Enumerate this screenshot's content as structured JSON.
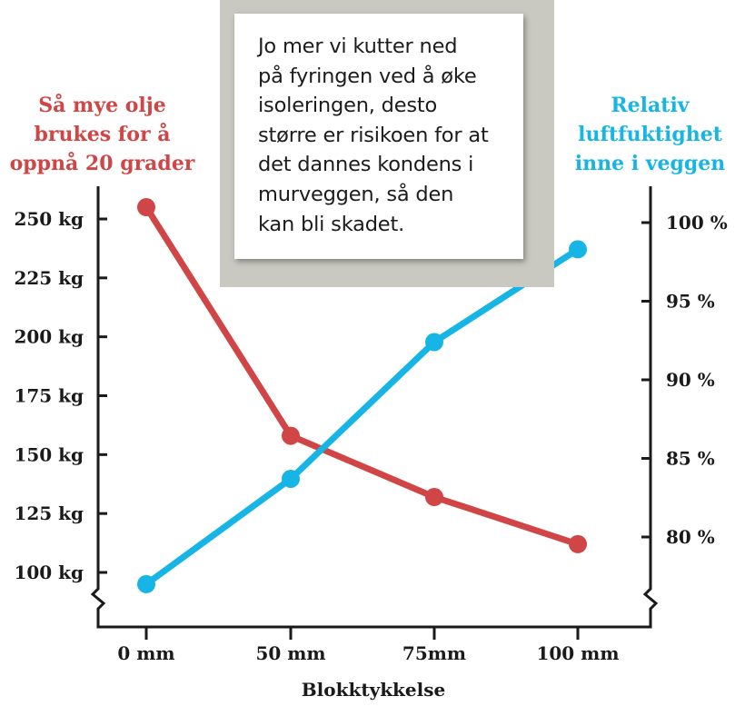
{
  "note": {
    "lines": [
      "Jo mer vi kutter ned",
      "på fyringen ved å øke",
      "isoleringen, desto",
      "større er risikoen for at",
      "det dannes kondens i",
      "murveggen, så den",
      "kan bli skadet."
    ]
  },
  "chart_data": {
    "type": "line",
    "categories": [
      "0 mm",
      "50 mm",
      "75mm",
      "100 mm"
    ],
    "xlabel": "Blokktykkelse",
    "y_left": {
      "title_lines": [
        "Så mye olje",
        "brukes for å",
        "oppnå 20 grader"
      ],
      "ticks": [
        250,
        225,
        200,
        175,
        150,
        125,
        100
      ],
      "tick_labels": [
        "250 kg",
        "225 kg",
        "200 kg",
        "175 kg",
        "150 kg",
        "125 kg",
        "100 kg"
      ],
      "range": [
        100,
        250
      ],
      "axis_break": true
    },
    "y_right": {
      "title_lines": [
        "Relativ",
        "luftfuktighet",
        "inne i veggen"
      ],
      "ticks": [
        100,
        95,
        90,
        85,
        80
      ],
      "tick_labels": [
        "100 %",
        "95 %",
        "90 %",
        "85 %",
        "80 %"
      ],
      "range": [
        80,
        100
      ],
      "axis_break": true
    },
    "series": [
      {
        "name": "Så mye olje brukes for å oppnå 20 grader",
        "axis": "left",
        "color": "#d04545",
        "values": [
          255,
          158,
          132,
          112
        ]
      },
      {
        "name": "Relativ luftfuktighet inne i veggen",
        "axis": "right",
        "color": "#17b5e5",
        "values": [
          77,
          83.7,
          92.4,
          98.3
        ]
      }
    ],
    "grid": false,
    "legend": "none"
  }
}
